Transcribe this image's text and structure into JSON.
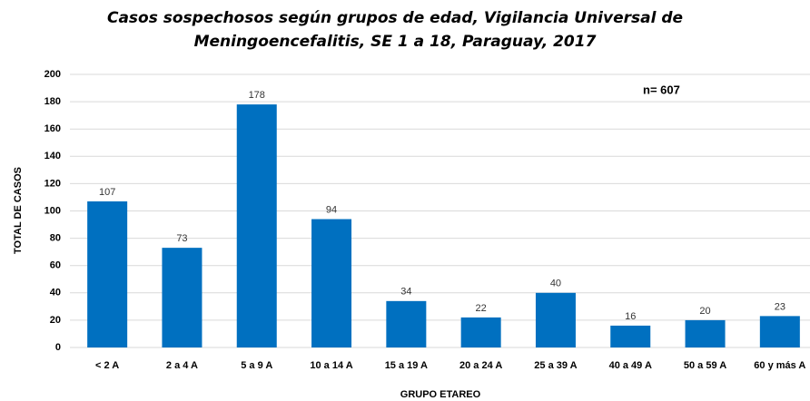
{
  "chart_data": {
    "type": "bar",
    "title": [
      "Casos sospechosos según grupos de edad, Vigilancia Universal de",
      "Meningoencefalitis, SE 1 a 18, Paraguay, 2017"
    ],
    "x_label": "GRUPO ETAREO",
    "y_label": "TOTAL DE CASOS",
    "annotation": "n= 607",
    "categories": [
      "< 2 A",
      "2 a 4 A",
      "5 a 9 A",
      "10 a 14 A",
      "15 a 19 A",
      "20 a 24 A",
      "25 a 39 A",
      "40 a 49 A",
      "50 a 59 A",
      "60 y más A"
    ],
    "values": [
      107,
      73,
      178,
      94,
      34,
      22,
      40,
      16,
      20,
      23
    ],
    "color": "#0070c0",
    "ylim": [
      0,
      200
    ],
    "yticks": [
      0,
      20,
      40,
      60,
      80,
      100,
      120,
      140,
      160,
      180,
      200
    ],
    "grid": true
  }
}
